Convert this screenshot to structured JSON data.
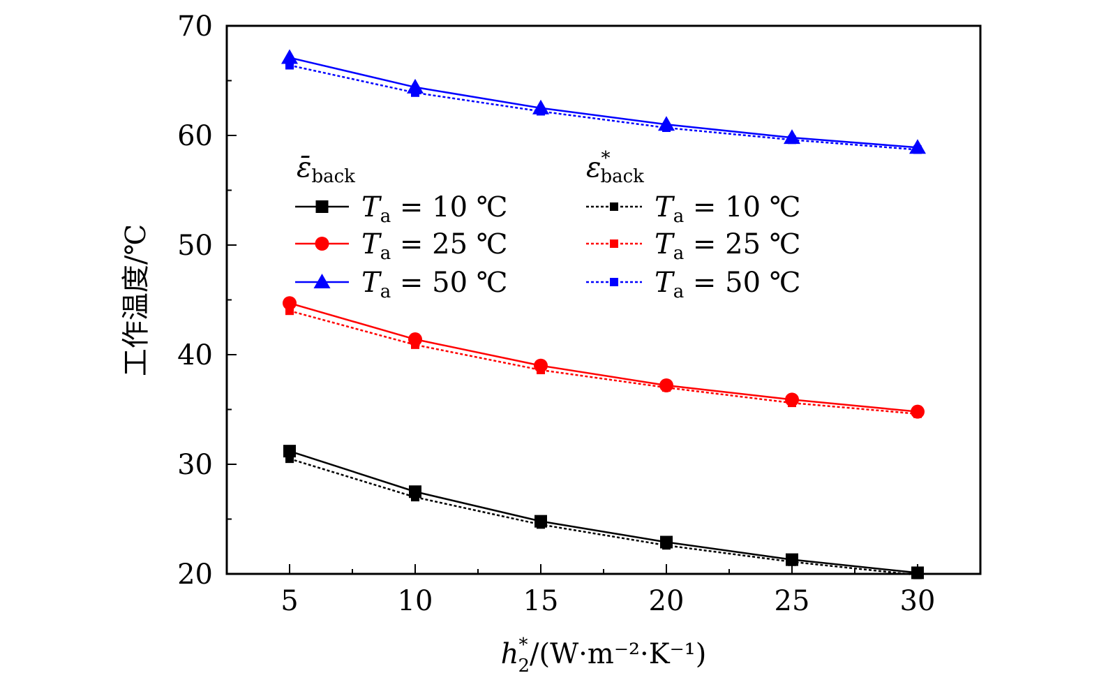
{
  "chart_data": {
    "type": "line",
    "title": "",
    "xlabel": {
      "main": "h",
      "sub": "2",
      "sup": "*",
      "rest": "/(W·m⁻²·K⁻¹)"
    },
    "ylabel": "工作温度/℃",
    "x": [
      5,
      10,
      15,
      20,
      25,
      30
    ],
    "xlim": [
      2.5,
      32.5
    ],
    "ylim": [
      20,
      70
    ],
    "xticks": [
      5,
      10,
      15,
      20,
      25,
      30
    ],
    "yticks": [
      20,
      30,
      40,
      50,
      60,
      70
    ],
    "grid": false,
    "legend_position": "upper-left",
    "legend": {
      "group1_header": {
        "main": "ε̄",
        "sub": "back"
      },
      "group2_header": {
        "main": "ε",
        "sub": "back",
        "sup": "*"
      },
      "entries": [
        {
          "var": "T",
          "sub": "a",
          "text": " = 10 ℃"
        },
        {
          "var": "T",
          "sub": "a",
          "text": " = 25 ℃"
        },
        {
          "var": "T",
          "sub": "a",
          "text": " = 50 ℃"
        }
      ]
    },
    "series": [
      {
        "group": "solid",
        "color": "#000000",
        "marker": "square",
        "values": [
          31.2,
          27.5,
          24.8,
          22.9,
          21.3,
          20.1
        ]
      },
      {
        "group": "solid",
        "color": "#ff0000",
        "marker": "circle",
        "values": [
          44.7,
          41.4,
          39.0,
          37.2,
          35.9,
          34.8
        ]
      },
      {
        "group": "solid",
        "color": "#0000ff",
        "marker": "triangle",
        "values": [
          67.1,
          64.4,
          62.5,
          61.0,
          59.8,
          58.9
        ]
      },
      {
        "group": "dashed",
        "color": "#000000",
        "marker": "small-square",
        "values": [
          30.5,
          27.0,
          24.5,
          22.6,
          21.1,
          19.9
        ]
      },
      {
        "group": "dashed",
        "color": "#ff0000",
        "marker": "small-square",
        "values": [
          44.0,
          40.9,
          38.6,
          37.0,
          35.6,
          34.6
        ]
      },
      {
        "group": "dashed",
        "color": "#0000ff",
        "marker": "small-square",
        "values": [
          66.4,
          63.9,
          62.2,
          60.7,
          59.6,
          58.7
        ]
      }
    ]
  }
}
